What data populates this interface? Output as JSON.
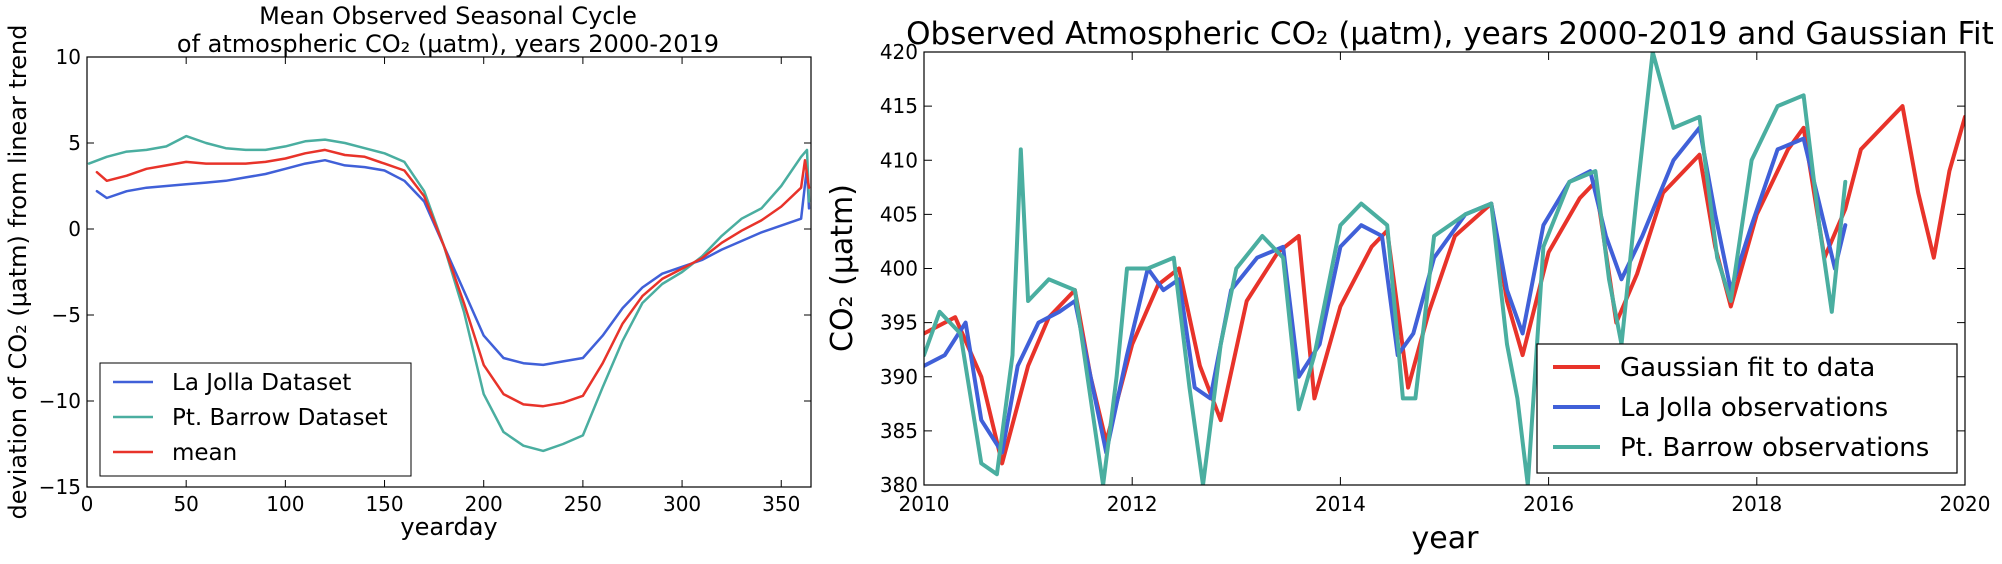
{
  "chart_data": [
    {
      "type": "line",
      "title": [
        "Mean Observed Seasonal Cycle",
        "of atmospheric CO₂ (μatm), years 2000-2019"
      ],
      "xlabel": "yearday",
      "ylabel": "deviation of CO₂ (μatm) from linear trend",
      "xlim": [
        0,
        365
      ],
      "ylim": [
        -15,
        10
      ],
      "xticks": [
        0,
        50,
        100,
        150,
        200,
        250,
        300,
        350
      ],
      "yticks": [
        -15,
        -10,
        -5,
        0,
        5,
        10
      ],
      "legend_position": "lower-left",
      "grid": false,
      "series": [
        {
          "name": "La Jolla Dataset",
          "color": "#4060d8",
          "x": [
            5,
            10,
            20,
            30,
            40,
            50,
            60,
            70,
            80,
            90,
            100,
            110,
            120,
            130,
            140,
            150,
            160,
            170,
            180,
            190,
            200,
            210,
            220,
            230,
            240,
            250,
            260,
            270,
            280,
            290,
            300,
            310,
            320,
            330,
            340,
            350,
            360,
            363,
            364
          ],
          "values": [
            2.2,
            1.8,
            2.2,
            2.4,
            2.5,
            2.6,
            2.7,
            2.8,
            3.0,
            3.2,
            3.5,
            3.8,
            4.0,
            3.7,
            3.6,
            3.4,
            2.8,
            1.6,
            -1.0,
            -3.6,
            -6.2,
            -7.5,
            -7.8,
            -7.9,
            -7.7,
            -7.5,
            -6.2,
            -4.6,
            -3.4,
            -2.6,
            -2.2,
            -1.8,
            -1.2,
            -0.7,
            -0.2,
            0.2,
            0.6,
            3.6,
            1.2
          ]
        },
        {
          "name": "Pt. Barrow Dataset",
          "color": "#4aaea0",
          "x": [
            1,
            10,
            20,
            30,
            40,
            50,
            60,
            70,
            80,
            90,
            100,
            110,
            120,
            130,
            140,
            150,
            160,
            170,
            180,
            190,
            200,
            210,
            220,
            230,
            240,
            250,
            260,
            270,
            280,
            290,
            300,
            310,
            320,
            330,
            340,
            350,
            360,
            363,
            364
          ],
          "values": [
            3.8,
            4.2,
            4.5,
            4.6,
            4.8,
            5.4,
            5.0,
            4.7,
            4.6,
            4.6,
            4.8,
            5.1,
            5.2,
            5.0,
            4.7,
            4.4,
            3.9,
            2.2,
            -1.0,
            -4.8,
            -9.6,
            -11.8,
            -12.6,
            -12.9,
            -12.5,
            -12.0,
            -9.2,
            -6.5,
            -4.3,
            -3.2,
            -2.5,
            -1.6,
            -0.4,
            0.6,
            1.2,
            2.5,
            4.2,
            4.6,
            1.6
          ]
        },
        {
          "name": "mean",
          "color": "#e8332a",
          "x": [
            5,
            10,
            20,
            30,
            40,
            50,
            60,
            70,
            80,
            90,
            100,
            110,
            120,
            130,
            140,
            150,
            160,
            170,
            180,
            190,
            200,
            210,
            220,
            230,
            240,
            250,
            260,
            270,
            280,
            290,
            300,
            310,
            320,
            330,
            340,
            350,
            360,
            362,
            364
          ],
          "values": [
            3.3,
            2.8,
            3.1,
            3.5,
            3.7,
            3.9,
            3.8,
            3.8,
            3.8,
            3.9,
            4.1,
            4.4,
            4.6,
            4.3,
            4.2,
            3.8,
            3.4,
            1.9,
            -1.0,
            -4.3,
            -7.9,
            -9.6,
            -10.2,
            -10.3,
            -10.1,
            -9.7,
            -7.8,
            -5.5,
            -3.9,
            -2.9,
            -2.3,
            -1.7,
            -0.8,
            -0.1,
            0.5,
            1.3,
            2.4,
            4.0,
            2.4
          ]
        }
      ]
    },
    {
      "type": "line",
      "title": "Observed Atmospheric CO₂ (μatm), years 2000-2019 and Gaussian Fit",
      "xlabel": "year",
      "ylabel": "CO₂ (μatm)",
      "xlim": [
        2010,
        2020
      ],
      "ylim": [
        380,
        420
      ],
      "xticks": [
        2010,
        2012,
        2014,
        2016,
        2018,
        2020
      ],
      "yticks": [
        380,
        385,
        390,
        395,
        400,
        405,
        410,
        415,
        420
      ],
      "legend_position": "lower-right",
      "grid": false,
      "series": [
        {
          "name": "Gaussian fit to data",
          "color": "#e8332a",
          "x": [
            2010.0,
            2010.3,
            2010.55,
            2010.75,
            2011.0,
            2011.2,
            2011.45,
            2011.6,
            2011.75,
            2012.0,
            2012.25,
            2012.45,
            2012.65,
            2012.85,
            2013.1,
            2013.4,
            2013.6,
            2013.75,
            2014.0,
            2014.3,
            2014.45,
            2014.65,
            2014.85,
            2015.1,
            2015.45,
            2015.6,
            2015.75,
            2016.0,
            2016.3,
            2016.45,
            2016.65,
            2016.85,
            2017.1,
            2017.45,
            2017.6,
            2017.75,
            2018.0,
            2018.3,
            2018.45,
            2018.65,
            2018.85,
            2019.0,
            2019.3,
            2019.4,
            2019.55,
            2019.7,
            2019.85,
            2020.0
          ],
          "values": [
            394.0,
            395.5,
            390.0,
            382.0,
            391.0,
            395.5,
            398.0,
            390.0,
            384.0,
            393.0,
            398.5,
            400.0,
            391.0,
            386.0,
            397.0,
            401.5,
            403.0,
            388.0,
            396.5,
            402.0,
            403.5,
            389.0,
            396.0,
            403.0,
            406.0,
            397.0,
            392.0,
            401.5,
            406.5,
            408.0,
            395.0,
            399.5,
            407.0,
            410.5,
            402.0,
            396.5,
            405.0,
            411.0,
            413.0,
            401.0,
            405.5,
            411.0,
            414.0,
            415.0,
            407.0,
            401.0,
            409.0,
            414.0
          ]
        },
        {
          "name": "La Jolla observations",
          "color": "#4060d8",
          "x": [
            2010.0,
            2010.2,
            2010.4,
            2010.55,
            2010.75,
            2010.9,
            2011.1,
            2011.3,
            2011.45,
            2011.6,
            2011.75,
            2011.95,
            2012.15,
            2012.3,
            2012.45,
            2012.6,
            2012.75,
            2012.95,
            2013.2,
            2013.45,
            2013.6,
            2013.8,
            2014.0,
            2014.2,
            2014.4,
            2014.55,
            2014.7,
            2014.9,
            2015.2,
            2015.45,
            2015.6,
            2015.75,
            2015.95,
            2016.2,
            2016.4,
            2016.55,
            2016.7,
            2016.9,
            2017.2,
            2017.45,
            2017.6,
            2017.75,
            2017.95,
            2018.2,
            2018.45,
            2018.6,
            2018.75,
            2018.85
          ],
          "values": [
            391.0,
            392.0,
            395.0,
            386.0,
            383.0,
            391.0,
            395.0,
            396.0,
            397.0,
            390.0,
            383.0,
            392.0,
            400.0,
            398.0,
            399.0,
            389.0,
            388.0,
            398.0,
            401.0,
            402.0,
            390.0,
            393.0,
            402.0,
            404.0,
            403.0,
            392.0,
            394.0,
            401.0,
            405.0,
            406.0,
            398.0,
            394.0,
            404.0,
            408.0,
            409.0,
            403.0,
            399.0,
            403.0,
            410.0,
            413.0,
            405.0,
            398.0,
            404.0,
            411.0,
            412.0,
            406.0,
            400.0,
            404.0
          ]
        },
        {
          "name": "Pt. Barrow observations",
          "color": "#4aaea0",
          "x": [
            2010.0,
            2010.15,
            2010.35,
            2010.55,
            2010.7,
            2010.85,
            2010.93,
            2011.0,
            2011.2,
            2011.45,
            2011.6,
            2011.72,
            2011.85,
            2011.95,
            2012.15,
            2012.4,
            2012.55,
            2012.68,
            2012.85,
            2013.0,
            2013.25,
            2013.45,
            2013.6,
            2013.75,
            2014.0,
            2014.2,
            2014.45,
            2014.6,
            2014.72,
            2014.9,
            2015.2,
            2015.45,
            2015.6,
            2015.7,
            2015.8,
            2015.95,
            2016.2,
            2016.45,
            2016.58,
            2016.7,
            2016.85,
            2017.0,
            2017.2,
            2017.45,
            2017.62,
            2017.75,
            2017.95,
            2018.2,
            2018.45,
            2018.6,
            2018.72,
            2018.85
          ],
          "values": [
            392.0,
            396.0,
            394.0,
            382.0,
            381.0,
            392.0,
            411.0,
            397.0,
            399.0,
            398.0,
            388.0,
            380.0,
            390.0,
            400.0,
            400.0,
            401.0,
            389.0,
            380.0,
            393.0,
            400.0,
            403.0,
            401.0,
            387.0,
            392.0,
            404.0,
            406.0,
            404.0,
            388.0,
            388.0,
            403.0,
            405.0,
            406.0,
            393.0,
            388.0,
            380.0,
            402.0,
            408.0,
            409.0,
            399.0,
            393.0,
            407.0,
            420.0,
            413.0,
            414.0,
            401.0,
            397.0,
            410.0,
            415.0,
            416.0,
            404.0,
            396.0,
            408.0
          ]
        }
      ]
    }
  ]
}
